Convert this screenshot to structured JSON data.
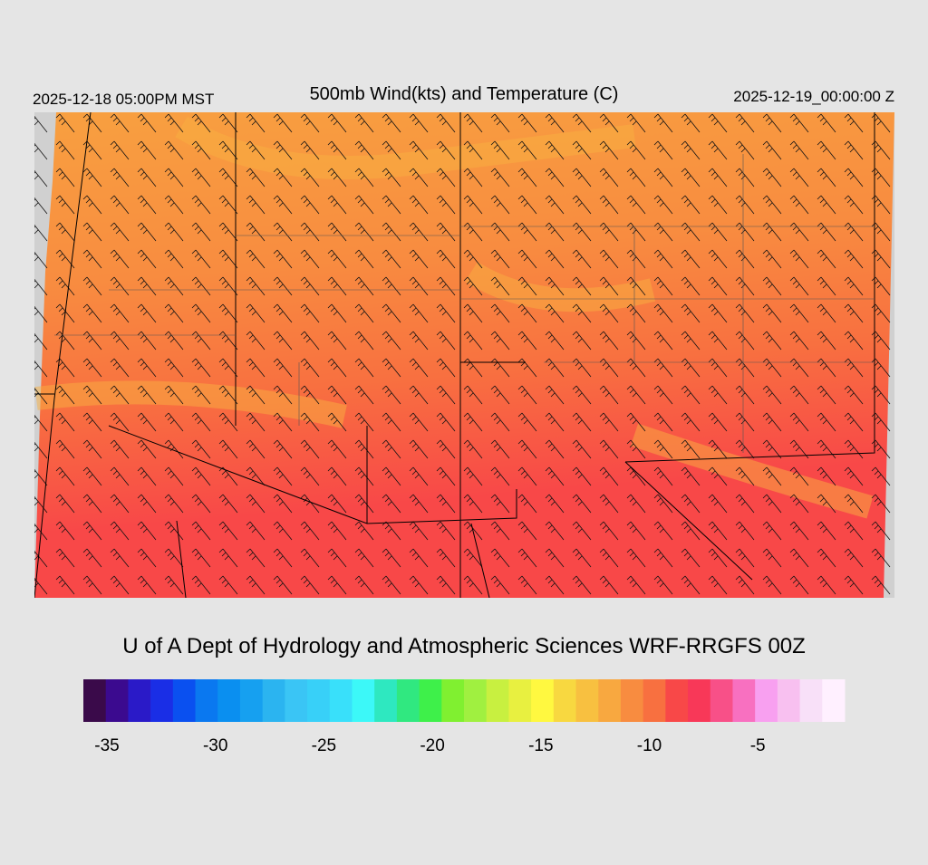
{
  "header": {
    "left": "2025-12-18 05:00PM MST",
    "title": "500mb Wind(kts) and Temperature (C)",
    "right": "2025-12-19_00:00:00 Z"
  },
  "credit": "U of A Dept of Hydrology and Atmospheric Sciences WRF-RRGFS 00Z",
  "colorbar": {
    "colors": [
      "#3a0a4a",
      "#3b0a8f",
      "#2a1ac8",
      "#1a2ee6",
      "#0a50f0",
      "#0a78f0",
      "#0a8ff0",
      "#16a0f0",
      "#2bb4f0",
      "#3ac5f5",
      "#38d0f8",
      "#39e0fa",
      "#3cf8f8",
      "#2ee8c0",
      "#30e880",
      "#3ef04a",
      "#80f030",
      "#a0f040",
      "#c8f040",
      "#e8f040",
      "#fff840",
      "#f8d840",
      "#f8c040",
      "#f8a840",
      "#f88c40",
      "#f87040",
      "#f84848",
      "#f83858",
      "#f85088",
      "#f870c0",
      "#f8a0f0",
      "#f8c0f0",
      "#f8e0f8",
      "#fff0ff"
    ],
    "labels": [
      -35,
      -30,
      -25,
      -20,
      -15,
      -10,
      -5
    ]
  }
}
